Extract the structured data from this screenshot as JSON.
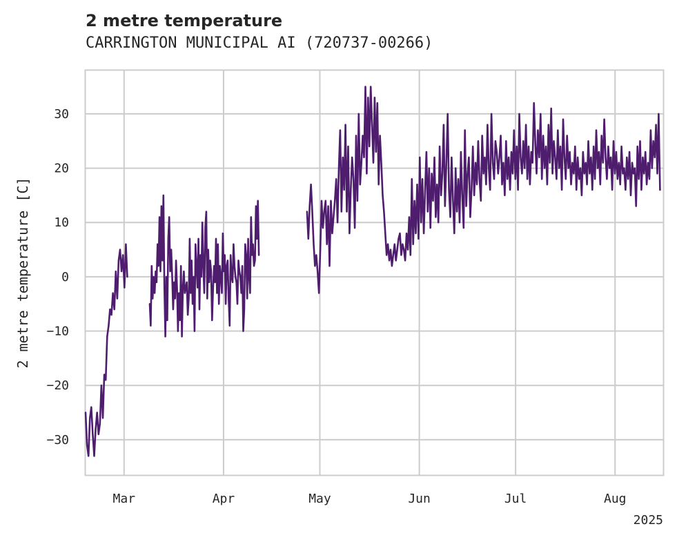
{
  "chart_data": {
    "type": "line",
    "title": "2 metre temperature",
    "subtitle": "CARRINGTON MUNICIPAL AI (720737-00266)",
    "ylabel": "2 metre temperature [C]",
    "xlabel": "",
    "x_tick_labels": [
      "Mar",
      "Apr",
      "May",
      "Jun",
      "Jul",
      "Aug"
    ],
    "x_tick_dates": [
      "2025-03-01",
      "2025-04-01",
      "2025-05-01",
      "2025-06-01",
      "2025-07-01",
      "2025-08-01"
    ],
    "x_year_label": "2025",
    "xlim": [
      "2025-02-17",
      "2025-08-16"
    ],
    "y_ticks": [
      -30,
      -20,
      -10,
      0,
      10,
      20,
      30
    ],
    "ylim": [
      -36.5,
      38
    ],
    "grid": true,
    "legend": "none",
    "line_color": "#4f1d6e",
    "series": [
      {
        "segments": [
          {
            "start": "2025-02-17",
            "end": "2025-03-02",
            "values": [
              -25,
              -31,
              -33,
              -26,
              -24,
              -29,
              -33,
              -28,
              -25,
              -29,
              -27,
              -20,
              -26,
              -18,
              -19,
              -11,
              -9,
              -6,
              -7,
              -3,
              -6,
              1,
              -4,
              3,
              5,
              1,
              4,
              -2,
              6,
              0
            ]
          },
          {
            "start": "2025-03-09",
            "end": "2025-04-12",
            "values": [
              -5,
              -9,
              2,
              -4,
              0,
              -3,
              1,
              -1,
              6,
              2,
              11,
              1,
              13,
              3,
              15,
              -2,
              -11,
              0,
              -8,
              7,
              11,
              1,
              5,
              0,
              -6,
              -1,
              -4,
              3,
              -2,
              -10,
              -3,
              -8,
              2,
              -11,
              -2,
              1,
              -3,
              -2,
              -1,
              -7,
              -4,
              7,
              -3,
              3,
              -5,
              0,
              -10,
              6,
              2,
              -2,
              7,
              -6,
              4,
              0,
              10,
              2,
              -3,
              9,
              12,
              -4,
              5,
              -1,
              3,
              1,
              -8,
              -2,
              2,
              -1,
              7,
              -3,
              6,
              -5,
              2,
              0,
              -3,
              8,
              1,
              4,
              -5,
              2,
              3,
              -4,
              -9,
              4,
              0,
              -1,
              6,
              2,
              0,
              -1,
              -5,
              3,
              1,
              0,
              -3,
              2,
              -10,
              -6,
              6,
              4,
              -4,
              7,
              0,
              -3,
              11,
              4,
              6,
              2,
              3,
              13,
              7,
              14,
              4
            ]
          },
          {
            "start": "2025-04-27",
            "end": "2025-08-15",
            "values": [
              12,
              7,
              13,
              17,
              12,
              6,
              2,
              4,
              1,
              -3,
              5,
              14,
              9,
              12,
              14,
              6,
              13,
              2,
              14,
              8,
              11,
              14,
              18,
              10,
              20,
              27,
              12,
              22,
              16,
              28,
              12,
              24,
              8,
              16,
              22,
              18,
              9,
              26,
              14,
              30,
              17,
              21,
              26,
              22,
              35,
              19,
              33,
              24,
              35,
              28,
              21,
              33,
              23,
              32,
              17,
              26,
              21,
              15,
              12,
              8,
              4,
              6,
              3,
              5,
              2,
              4,
              6,
              3,
              5,
              7,
              8,
              4,
              6,
              5,
              3,
              8,
              5,
              11,
              4,
              18,
              6,
              14,
              8,
              17,
              7,
              22,
              10,
              18,
              8,
              16,
              23,
              12,
              20,
              9,
              19,
              14,
              22,
              11,
              17,
              10,
              24,
              15,
              19,
              28,
              13,
              21,
              30,
              16,
              11,
              22,
              14,
              8,
              20,
              12,
              18,
              10,
              23,
              15,
              9,
              27,
              13,
              19,
              22,
              11,
              16,
              24,
              15,
              21,
              17,
              25,
              18,
              14,
              26,
              19,
              22,
              17,
              28,
              20,
              16,
              30,
              21,
              18,
              25,
              23,
              19,
              22,
              26,
              17,
              21,
              15,
              25,
              18,
              22,
              16,
              23,
              19,
              27,
              18,
              24,
              16,
              30,
              22,
              19,
              25,
              20,
              28,
              18,
              24,
              17,
              23,
              21,
              32,
              25,
              19,
              27,
              22,
              30,
              18,
              26,
              20,
              24,
              17,
              28,
              21,
              31,
              19,
              25,
              22,
              18,
              27,
              20,
              24,
              16,
              29,
              22,
              18,
              26,
              20,
              23,
              17,
              21,
              19,
              24,
              16,
              22,
              18,
              20,
              15,
              23,
              19,
              21,
              17,
              25,
              19,
              22,
              16,
              24,
              18,
              27,
              20,
              23,
              17,
              26,
              21,
              29,
              22,
              18,
              24,
              20,
              22,
              16,
              25,
              19,
              23,
              18,
              21,
              17,
              24,
              19,
              20,
              16,
              22,
              18,
              23,
              15,
              21,
              19,
              20,
              13,
              24,
              18,
              25,
              16,
              22,
              19,
              23,
              17,
              21,
              18,
              27,
              20,
              25,
              22,
              28,
              19,
              30,
              16
            ]
          }
        ]
      }
    ]
  }
}
